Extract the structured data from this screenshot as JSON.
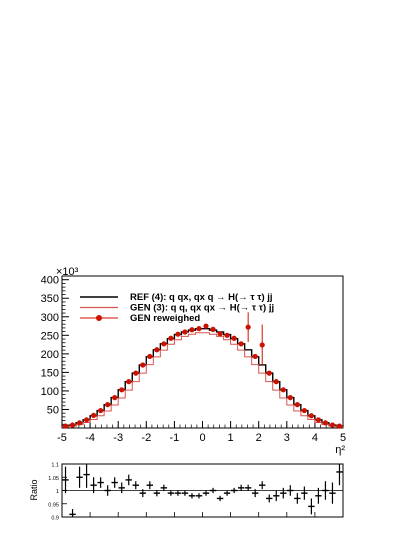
{
  "chart_data": [
    {
      "type": "line",
      "xlabel": "η²",
      "ylabel": "",
      "y_exponent_label": "×10³",
      "xlim": [
        -5,
        5
      ],
      "ylim": [
        0,
        410
      ],
      "x_ticks": [
        "-5",
        "-4",
        "-3",
        "-2",
        "-1",
        "0",
        "1",
        "2",
        "3",
        "4",
        "5"
      ],
      "y_ticks": [
        "50",
        "100",
        "150",
        "200",
        "250",
        "300",
        "350",
        "400"
      ],
      "legend_position": "top-left",
      "bin_edges": [
        -5.0,
        -4.75,
        -4.5,
        -4.25,
        -4.0,
        -3.75,
        -3.5,
        -3.25,
        -3.0,
        -2.75,
        -2.5,
        -2.25,
        -2.0,
        -1.75,
        -1.5,
        -1.25,
        -1.0,
        -0.75,
        -0.5,
        -0.25,
        0.0,
        0.25,
        0.5,
        0.75,
        1.0,
        1.25,
        1.5,
        1.75,
        2.0,
        2.25,
        2.5,
        2.75,
        3.0,
        3.25,
        3.5,
        3.75,
        4.0,
        4.25,
        4.5,
        4.75,
        5.0
      ],
      "series": [
        {
          "name": "REF (4): q qx, qx q   → H(→ τ τ) jj",
          "style": "step",
          "color": "#000000",
          "values": [
            5,
            8,
            14,
            22,
            33,
            47,
            63,
            82,
            103,
            125,
            148,
            170,
            192,
            211,
            227,
            241,
            252,
            259,
            264,
            268,
            268,
            264,
            259,
            252,
            241,
            227,
            211,
            192,
            170,
            148,
            125,
            103,
            82,
            63,
            47,
            33,
            22,
            14,
            8,
            5
          ]
        },
        {
          "name": "GEN (3): q q, qx qx → H(→ τ τ) jj",
          "style": "step",
          "color": "#d9534f",
          "values": [
            3,
            5,
            9,
            15,
            23,
            33,
            46,
            62,
            81,
            102,
            125,
            148,
            171,
            192,
            210,
            226,
            238,
            247,
            253,
            257,
            257,
            253,
            247,
            238,
            226,
            210,
            192,
            171,
            148,
            125,
            102,
            81,
            62,
            46,
            33,
            23,
            15,
            9,
            5,
            3
          ]
        },
        {
          "name": "GEN reweighed",
          "style": "markers",
          "color": "#cc1100",
          "values": [
            5,
            8,
            14,
            22,
            34,
            47,
            63,
            82,
            103,
            125,
            148,
            170,
            193,
            211,
            227,
            242,
            253,
            259,
            265,
            268,
            275,
            266,
            254,
            250,
            242,
            227,
            272,
            193,
            224,
            148,
            125,
            103,
            82,
            63,
            47,
            33,
            22,
            14,
            8,
            5
          ],
          "errors": [
            0,
            0,
            0,
            0,
            0,
            0,
            0,
            0,
            0,
            0,
            0,
            0,
            0,
            0,
            0,
            0,
            0,
            0,
            0,
            0,
            0,
            0,
            0,
            0,
            0,
            0,
            40,
            0,
            55,
            0,
            0,
            0,
            0,
            0,
            0,
            0,
            0,
            0,
            0,
            0
          ]
        }
      ]
    },
    {
      "type": "scatter",
      "ylabel": "Ratio",
      "xlim": [
        -5,
        5
      ],
      "ylim": [
        0.9,
        1.1
      ],
      "y_ticks": [
        "0.9",
        "0.95",
        "1",
        "1.05",
        "1.1"
      ],
      "reference_line": 1.0,
      "x": [
        -4.875,
        -4.625,
        -4.375,
        -4.125,
        -3.875,
        -3.625,
        -3.375,
        -3.125,
        -2.875,
        -2.625,
        -2.375,
        -2.125,
        -1.875,
        -1.625,
        -1.375,
        -1.125,
        -0.875,
        -0.625,
        -0.375,
        -0.125,
        0.125,
        0.375,
        0.625,
        0.875,
        1.125,
        1.375,
        1.625,
        1.875,
        2.125,
        2.375,
        2.625,
        2.875,
        3.125,
        3.375,
        3.625,
        3.875,
        4.125,
        4.375,
        4.625,
        4.875
      ],
      "values": [
        1.04,
        0.91,
        1.05,
        1.06,
        1.02,
        1.03,
        1.0,
        1.03,
        1.01,
        1.04,
        1.02,
        0.99,
        1.02,
        0.99,
        1.01,
        0.99,
        0.99,
        0.99,
        0.98,
        0.98,
        0.99,
        1.0,
        0.97,
        0.99,
        1.0,
        1.01,
        1.01,
        0.99,
        1.02,
        0.97,
        0.98,
        0.99,
        1.0,
        0.97,
        0.99,
        0.94,
        0.98,
        1.0,
        0.99,
        1.07
      ],
      "errors": [
        0.05,
        0.02,
        0.04,
        0.05,
        0.03,
        0.02,
        0.02,
        0.02,
        0.02,
        0.02,
        0.015,
        0.015,
        0.015,
        0.012,
        0.012,
        0.01,
        0.01,
        0.01,
        0.01,
        0.01,
        0.01,
        0.01,
        0.01,
        0.01,
        0.01,
        0.012,
        0.012,
        0.015,
        0.015,
        0.015,
        0.02,
        0.02,
        0.02,
        0.02,
        0.025,
        0.03,
        0.03,
        0.035,
        0.04,
        0.05
      ]
    }
  ]
}
